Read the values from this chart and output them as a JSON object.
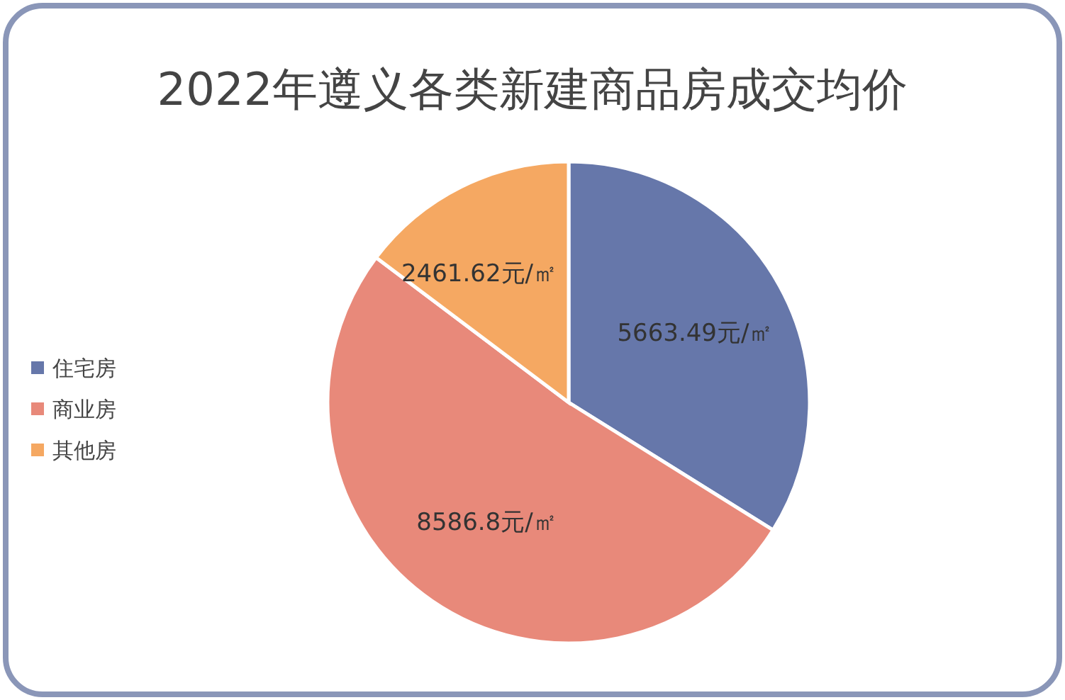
{
  "chart_data": {
    "type": "pie",
    "title": "2022年遵义各类新建商品房成交均价",
    "categories": [
      "住宅房",
      "商业房",
      "其他房"
    ],
    "values": [
      5663.49,
      8586.8,
      2461.62
    ],
    "colors": [
      "#6677aa",
      "#e8897a",
      "#f5a862"
    ],
    "value_labels": [
      "5663.49元/㎡",
      "8586.8元/㎡",
      "2461.62元/㎡"
    ],
    "legend": "left"
  }
}
